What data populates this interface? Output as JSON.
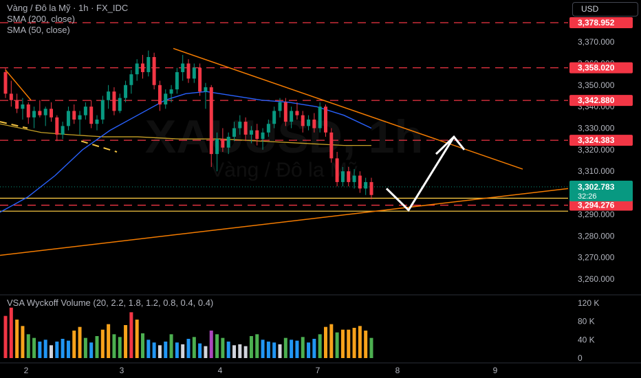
{
  "header": {
    "symbol_line": "Vàng / Đô la Mỹ · 1h · FX_IDC",
    "sma200_label": "SMA (200, close)",
    "sma50_label": "SMA (50, close)",
    "currency": "USD"
  },
  "watermark": {
    "ticker": "XAUUSD, 1h",
    "name": "Vàng / Đô la Mỹ"
  },
  "volume_panel": {
    "title": "VSA Wyckoff Volume (20, 2.2, 1.8, 1.2, 0.8, 0.4, 0.4)"
  },
  "price_axis": {
    "ticks": [
      "3,370.000",
      "3,360.000",
      "3,350.000",
      "3,340.000",
      "3,330.000",
      "3,320.000",
      "3,310.000",
      "3,290.000",
      "3,280.000",
      "3,270.000",
      "3,260.000"
    ],
    "tick_values": [
      3370,
      3360,
      3350,
      3340,
      3330,
      3320,
      3310,
      3290,
      3280,
      3270,
      3260
    ]
  },
  "volume_axis": {
    "ticks": [
      "120 K",
      "80 K",
      "40 K",
      "0"
    ],
    "tick_values": [
      120,
      80,
      40,
      0
    ]
  },
  "time_axis": {
    "labels": [
      "2",
      "3",
      "4",
      "7",
      "8",
      "9"
    ]
  },
  "price_badges": [
    {
      "label": "3,378.952",
      "value": 3378.952,
      "color": "#f23645"
    },
    {
      "label": "3,358.020",
      "value": 3358.02,
      "color": "#f23645"
    },
    {
      "label": "3,342.880",
      "value": 3342.88,
      "color": "#f23645"
    },
    {
      "label": "3,324.383",
      "value": 3324.383,
      "color": "#f23645"
    },
    {
      "label": "3,294.276",
      "value": 3294.276,
      "color": "#f23645"
    }
  ],
  "last_price": {
    "label": "3,302.783",
    "countdown": "32:26",
    "value": 3302.783,
    "color": "#089981"
  },
  "colors": {
    "up": "#089981",
    "down": "#f23645",
    "sma200": "#c9a227",
    "sma50": "#2962ff",
    "trend": "#f57c00",
    "level": "#f23645",
    "zone": "#f5c542",
    "arrow": "#ffffff"
  },
  "chart_data": {
    "type": "candlestick",
    "symbol": "XAUUSD",
    "timeframe": "1h",
    "y_range": [
      3253,
      3385
    ],
    "x_labels": [
      "2",
      "3",
      "4",
      "7",
      "8",
      "9"
    ],
    "candles": [
      [
        3356,
        3358,
        3344,
        3346
      ],
      [
        3346,
        3352,
        3340,
        3343
      ],
      [
        3343,
        3346,
        3337,
        3339
      ],
      [
        3339,
        3344,
        3334,
        3341
      ],
      [
        3341,
        3342,
        3332,
        3335
      ],
      [
        3335,
        3340,
        3330,
        3338
      ],
      [
        3338,
        3343,
        3335,
        3336
      ],
      [
        3336,
        3340,
        3331,
        3339
      ],
      [
        3339,
        3342,
        3333,
        3335
      ],
      [
        3335,
        3336,
        3324,
        3327
      ],
      [
        3327,
        3333,
        3325,
        3331
      ],
      [
        3331,
        3340,
        3329,
        3338
      ],
      [
        3338,
        3341,
        3332,
        3334
      ],
      [
        3334,
        3338,
        3327,
        3336
      ],
      [
        3336,
        3342,
        3334,
        3340
      ],
      [
        3340,
        3343,
        3330,
        3332
      ],
      [
        3332,
        3336,
        3329,
        3334
      ],
      [
        3334,
        3345,
        3332,
        3343
      ],
      [
        3343,
        3350,
        3339,
        3347
      ],
      [
        3347,
        3349,
        3336,
        3338
      ],
      [
        3338,
        3346,
        3337,
        3344
      ],
      [
        3344,
        3352,
        3342,
        3350
      ],
      [
        3350,
        3357,
        3346,
        3355
      ],
      [
        3355,
        3362,
        3352,
        3360
      ],
      [
        3360,
        3364,
        3353,
        3356
      ],
      [
        3356,
        3366,
        3354,
        3363
      ],
      [
        3363,
        3365,
        3348,
        3350
      ],
      [
        3350,
        3352,
        3338,
        3341
      ],
      [
        3341,
        3348,
        3339,
        3346
      ],
      [
        3346,
        3350,
        3342,
        3348
      ],
      [
        3348,
        3358,
        3346,
        3356
      ],
      [
        3356,
        3364,
        3352,
        3360
      ],
      [
        3360,
        3362,
        3351,
        3353
      ],
      [
        3353,
        3360,
        3351,
        3358
      ],
      [
        3358,
        3360,
        3345,
        3347
      ],
      [
        3347,
        3351,
        3339,
        3349
      ],
      [
        3349,
        3350,
        3312,
        3318
      ],
      [
        3318,
        3328,
        3310,
        3325
      ],
      [
        3325,
        3330,
        3319,
        3321
      ],
      [
        3321,
        3328,
        3318,
        3326
      ],
      [
        3326,
        3333,
        3324,
        3330
      ],
      [
        3330,
        3336,
        3327,
        3333
      ],
      [
        3333,
        3335,
        3324,
        3327
      ],
      [
        3327,
        3331,
        3323,
        3329
      ],
      [
        3329,
        3332,
        3322,
        3325
      ],
      [
        3325,
        3330,
        3320,
        3328
      ],
      [
        3328,
        3334,
        3326,
        3332
      ],
      [
        3332,
        3340,
        3330,
        3338
      ],
      [
        3338,
        3344,
        3335,
        3342
      ],
      [
        3342,
        3344,
        3331,
        3333
      ],
      [
        3333,
        3340,
        3330,
        3338
      ],
      [
        3338,
        3342,
        3334,
        3336
      ],
      [
        3336,
        3338,
        3328,
        3331
      ],
      [
        3331,
        3336,
        3329,
        3334
      ],
      [
        3334,
        3337,
        3328,
        3330
      ],
      [
        3330,
        3342,
        3328,
        3340
      ],
      [
        3340,
        3341,
        3326,
        3328
      ],
      [
        3328,
        3330,
        3314,
        3316
      ],
      [
        3316,
        3319,
        3303,
        3305
      ],
      [
        3305,
        3312,
        3303,
        3310
      ],
      [
        3310,
        3312,
        3303,
        3305
      ],
      [
        3305,
        3311,
        3302,
        3308
      ],
      [
        3308,
        3310,
        3300,
        3302
      ],
      [
        3302,
        3307,
        3299,
        3305
      ],
      [
        3305,
        3307,
        3297,
        3299
      ]
    ],
    "volume": [
      92,
      110,
      84,
      70,
      52,
      44,
      36,
      40,
      28,
      36,
      42,
      38,
      60,
      68,
      44,
      34,
      48,
      62,
      74,
      52,
      46,
      72,
      100,
      84,
      54,
      40,
      34,
      28,
      36,
      52,
      34,
      30,
      42,
      46,
      32,
      26,
      60,
      52,
      44,
      36,
      28,
      30,
      26,
      48,
      52,
      40,
      36,
      34,
      30,
      44,
      40,
      38,
      46,
      34,
      42,
      52,
      68,
      74,
      56,
      62,
      62,
      66,
      70,
      60,
      44
    ],
    "sma200": [
      [
        0,
        3332
      ],
      [
        30,
        3330
      ],
      [
        60,
        3328
      ],
      [
        100,
        3327
      ],
      [
        150,
        3326
      ],
      [
        200,
        3326
      ],
      [
        260,
        3325
      ],
      [
        320,
        3325
      ],
      [
        380,
        3324
      ],
      [
        440,
        3323
      ],
      [
        500,
        3322
      ],
      [
        540,
        3322
      ]
    ],
    "sma50": [
      [
        0,
        3291
      ],
      [
        40,
        3298
      ],
      [
        80,
        3308
      ],
      [
        120,
        3320
      ],
      [
        160,
        3329
      ],
      [
        200,
        3336
      ],
      [
        240,
        3343
      ],
      [
        270,
        3346
      ],
      [
        300,
        3347
      ],
      [
        340,
        3345
      ],
      [
        380,
        3343
      ],
      [
        420,
        3342
      ],
      [
        460,
        3340
      ],
      [
        500,
        3336
      ],
      [
        540,
        3330
      ]
    ],
    "trendlines": [
      {
        "from": [
          252,
          3367
        ],
        "to": [
          760,
          3311
        ]
      },
      {
        "from": [
          0,
          3271
        ],
        "to": [
          826,
          3302
        ]
      },
      {
        "from": [
          8,
          3357
        ],
        "to": [
          45,
          3343
        ]
      }
    ],
    "resistance_levels": [
      3378.952,
      3358.02,
      3342.88,
      3324.383,
      3294.276
    ],
    "zone": [
      3291.5,
      3297.5
    ],
    "projection_arrow": [
      [
        562,
        3302
      ],
      [
        594,
        3292
      ],
      [
        660,
        3326
      ],
      [
        675,
        3320
      ]
    ]
  }
}
